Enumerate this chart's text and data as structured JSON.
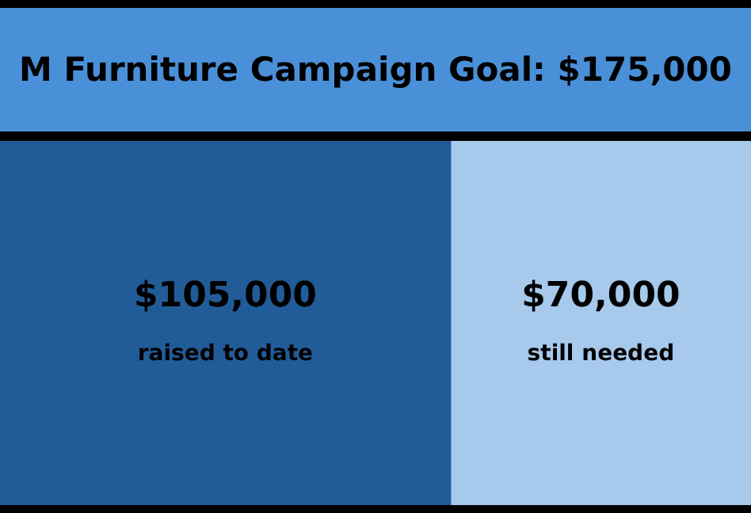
{
  "chart_data": {
    "type": "bar",
    "orientation": "horizontal",
    "stacked": true,
    "title": "M Furniture Campaign Goal: $175,000",
    "categories": [
      null
    ],
    "series": [
      {
        "name": "raised to date",
        "color": "#215c98",
        "values": [
          105000
        ],
        "value_labels": [
          "$105,000"
        ]
      },
      {
        "name": "still needed",
        "color": "#a6c9ec",
        "values": [
          70000
        ],
        "value_labels": [
          "$70,000"
        ]
      }
    ],
    "xlim": [
      0,
      175000
    ],
    "tick_labels": false,
    "legend": false
  }
}
